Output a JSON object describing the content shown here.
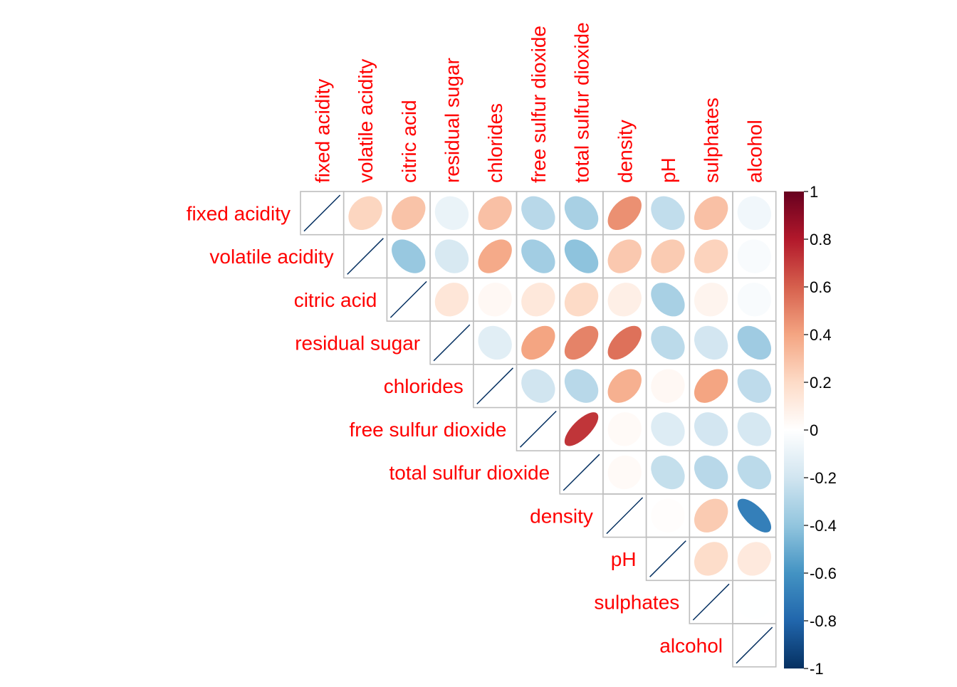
{
  "chart_data": {
    "type": "heatmap",
    "title": "",
    "variables": [
      "fixed acidity",
      "volatile acidity",
      "citric acid",
      "residual sugar",
      "chlorides",
      "free sulfur dioxide",
      "total sulfur dioxide",
      "density",
      "pH",
      "sulphates",
      "alcohol"
    ],
    "upper_triangle": [
      [
        1,
        0.22,
        0.29,
        -0.09,
        0.3,
        -0.28,
        -0.33,
        0.46,
        -0.25,
        0.3,
        -0.06
      ],
      [
        null,
        1,
        -0.38,
        -0.17,
        0.38,
        -0.35,
        -0.41,
        0.27,
        0.26,
        0.23,
        -0.03
      ],
      [
        null,
        null,
        1,
        0.14,
        0.04,
        0.13,
        0.2,
        0.09,
        -0.33,
        0.06,
        -0.03
      ],
      [
        null,
        null,
        null,
        1,
        -0.13,
        0.4,
        0.5,
        0.55,
        -0.27,
        -0.19,
        -0.36
      ],
      [
        null,
        null,
        null,
        null,
        1,
        -0.2,
        -0.28,
        0.36,
        0.04,
        0.4,
        -0.26
      ],
      [
        null,
        null,
        null,
        null,
        null,
        1,
        0.72,
        0.03,
        -0.15,
        -0.19,
        -0.18
      ],
      [
        null,
        null,
        null,
        null,
        null,
        null,
        1,
        0.03,
        -0.24,
        -0.28,
        -0.27
      ],
      [
        null,
        null,
        null,
        null,
        null,
        null,
        null,
        1,
        0.01,
        0.26,
        -0.69
      ],
      [
        null,
        null,
        null,
        null,
        null,
        null,
        null,
        null,
        1,
        0.19,
        0.12
      ],
      [
        null,
        null,
        null,
        null,
        null,
        null,
        null,
        null,
        null,
        1,
        -0.003
      ],
      [
        null,
        null,
        null,
        null,
        null,
        null,
        null,
        null,
        null,
        null,
        1
      ]
    ],
    "colorbar": {
      "range": [
        -1,
        1
      ],
      "ticks": [
        "1",
        "0.8",
        "0.6",
        "0.4",
        "0.2",
        "0",
        "-0.2",
        "-0.4",
        "-0.6",
        "-0.8",
        "-1"
      ],
      "colors": [
        "#67001F",
        "#B2182B",
        "#D6604D",
        "#F4A582",
        "#FDDBC7",
        "#FFFFFF",
        "#D1E5F0",
        "#92C5DE",
        "#4393C3",
        "#2166AC",
        "#053061"
      ]
    },
    "label_color": "#FF0000",
    "grid_color": "#BEBEBE",
    "grid": true
  }
}
